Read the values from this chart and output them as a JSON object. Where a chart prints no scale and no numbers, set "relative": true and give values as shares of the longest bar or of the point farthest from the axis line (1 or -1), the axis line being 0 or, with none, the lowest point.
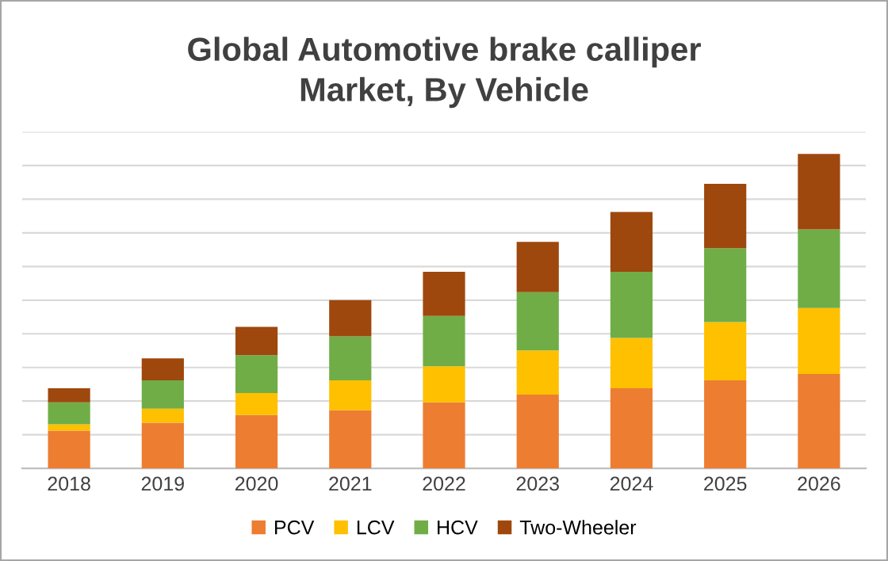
{
  "chart_data": {
    "type": "bar",
    "title": "Global Automotive brake calliper\nMarket, By Vehicle",
    "categories": [
      "2018",
      "2019",
      "2020",
      "2021",
      "2022",
      "2023",
      "2024",
      "2025",
      "2026"
    ],
    "stacked": true,
    "relative": true,
    "grid": "y",
    "legend": "bottom",
    "series": [
      {
        "name": "PCV",
        "color": "#ed7d31",
        "values": [
          0.12,
          0.145,
          0.17,
          0.185,
          0.21,
          0.235,
          0.255,
          0.28,
          0.3
        ]
      },
      {
        "name": "LCV",
        "color": "#ffc000",
        "values": [
          0.02,
          0.045,
          0.07,
          0.095,
          0.115,
          0.14,
          0.16,
          0.185,
          0.21
        ]
      },
      {
        "name": "HCV",
        "color": "#70ad47",
        "values": [
          0.07,
          0.09,
          0.12,
          0.14,
          0.16,
          0.185,
          0.21,
          0.235,
          0.25
        ]
      },
      {
        "name": "Two-Wheeler",
        "color": "#9e480e",
        "values": [
          0.045,
          0.07,
          0.09,
          0.115,
          0.14,
          0.16,
          0.19,
          0.205,
          0.24
        ]
      }
    ]
  }
}
